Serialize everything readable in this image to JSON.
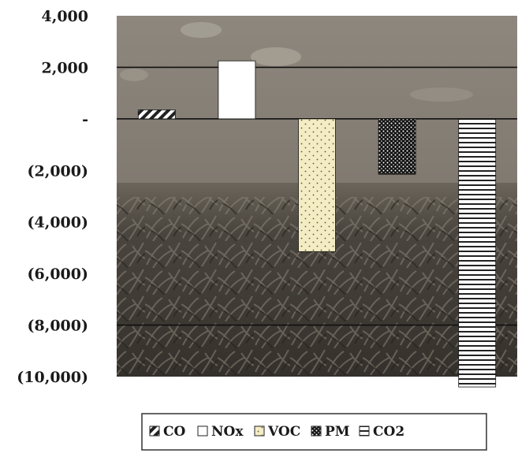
{
  "chart_data": {
    "type": "bar",
    "categories": [
      "CO",
      "NOx",
      "VOC",
      "PM",
      "CO2"
    ],
    "series": [
      {
        "name": "CO",
        "value": 350,
        "pattern": "diagonal"
      },
      {
        "name": "NOx",
        "value": 2250,
        "pattern": "solid-white"
      },
      {
        "name": "VOC",
        "value": -5150,
        "pattern": "dots-light"
      },
      {
        "name": "PM",
        "value": -2150,
        "pattern": "dots-dense"
      },
      {
        "name": "CO2",
        "value": -10400,
        "pattern": "horizontal-lines"
      }
    ],
    "ylim": [
      -10000,
      4000
    ],
    "yticks": [
      4000,
      2000,
      0,
      -2000,
      -4000,
      -6000,
      -8000,
      -10000
    ],
    "ytick_labels": [
      "4,000",
      "2,000",
      "-",
      "(2,000)",
      "(4,000)",
      "(6,000)",
      "(8,000)",
      "(10,000)"
    ],
    "gridlines": [
      2000,
      0,
      -8000
    ],
    "legend_position": "bottom",
    "background": "photo of cornfield under cloudy sky",
    "colors": {
      "sky": "#8a8278",
      "field": "#3e3a34",
      "voc_fill": "#f4ecc2",
      "bar_stroke": "#111111"
    }
  }
}
